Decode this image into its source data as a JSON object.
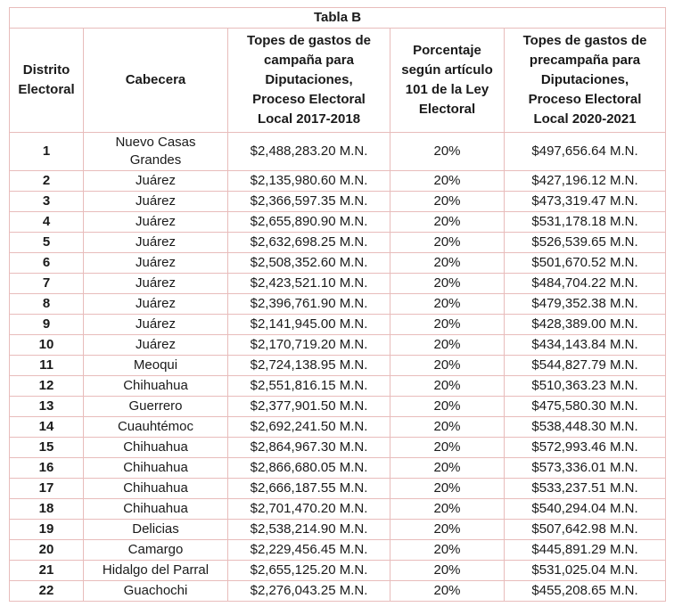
{
  "colors": {
    "border_light": "#e8bcbb",
    "border_heavy": "#d08c8c",
    "text": "#1a1a1a"
  },
  "table": {
    "title": "Tabla B",
    "columns": [
      "Distrito\nElectoral",
      "Cabecera",
      "Topes de gastos de\ncampaña para\nDiputaciones,\nProceso Electoral\nLocal 2017-2018",
      "Porcentaje\nsegún artículo\n101 de la Ley\nElectoral",
      "Topes de gastos de\nprecampaña para\nDiputaciones,\nProceso Electoral\nLocal 2020-2021"
    ],
    "rows": [
      [
        "1",
        "Nuevo Casas\nGrandes",
        "$2,488,283.20 M.N.",
        "20%",
        "$497,656.64 M.N."
      ],
      [
        "2",
        "Juárez",
        "$2,135,980.60 M.N.",
        "20%",
        "$427,196.12 M.N."
      ],
      [
        "3",
        "Juárez",
        "$2,366,597.35 M.N.",
        "20%",
        "$473,319.47 M.N."
      ],
      [
        "4",
        "Juárez",
        "$2,655,890.90 M.N.",
        "20%",
        "$531,178.18 M.N."
      ],
      [
        "5",
        "Juárez",
        "$2,632,698.25 M.N.",
        "20%",
        "$526,539.65 M.N."
      ],
      [
        "6",
        "Juárez",
        "$2,508,352.60 M.N.",
        "20%",
        "$501,670.52 M.N."
      ],
      [
        "7",
        "Juárez",
        "$2,423,521.10 M.N.",
        "20%",
        "$484,704.22 M.N."
      ],
      [
        "8",
        "Juárez",
        "$2,396,761.90 M.N.",
        "20%",
        "$479,352.38 M.N."
      ],
      [
        "9",
        "Juárez",
        "$2,141,945.00 M.N.",
        "20%",
        "$428,389.00 M.N."
      ],
      [
        "10",
        "Juárez",
        "$2,170,719.20 M.N.",
        "20%",
        "$434,143.84 M.N."
      ],
      [
        "11",
        "Meoqui",
        "$2,724,138.95 M.N.",
        "20%",
        "$544,827.79 M.N."
      ],
      [
        "12",
        "Chihuahua",
        "$2,551,816.15 M.N.",
        "20%",
        "$510,363.23 M.N."
      ],
      [
        "13",
        "Guerrero",
        "$2,377,901.50 M.N.",
        "20%",
        "$475,580.30 M.N."
      ],
      [
        "14",
        "Cuauhtémoc",
        "$2,692,241.50 M.N.",
        "20%",
        "$538,448.30 M.N."
      ],
      [
        "15",
        "Chihuahua",
        "$2,864,967.30 M.N.",
        "20%",
        "$572,993.46 M.N."
      ],
      [
        "16",
        "Chihuahua",
        "$2,866,680.05 M.N.",
        "20%",
        "$573,336.01 M.N."
      ],
      [
        "17",
        "Chihuahua",
        "$2,666,187.55 M.N.",
        "20%",
        "$533,237.51 M.N."
      ],
      [
        "18",
        "Chihuahua",
        "$2,701,470.20 M.N.",
        "20%",
        "$540,294.04 M.N."
      ],
      [
        "19",
        "Delicias",
        "$2,538,214.90 M.N.",
        "20%",
        "$507,642.98 M.N."
      ],
      [
        "20",
        "Camargo",
        "$2,229,456.45 M.N.",
        "20%",
        "$445,891.29 M.N."
      ],
      [
        "21",
        "Hidalgo del Parral",
        "$2,655,125.20 M.N.",
        "20%",
        "$531,025.04 M.N."
      ],
      [
        "22",
        "Guachochi",
        "$2,276,043.25 M.N.",
        "20%",
        "$455,208.65 M.N."
      ]
    ]
  }
}
